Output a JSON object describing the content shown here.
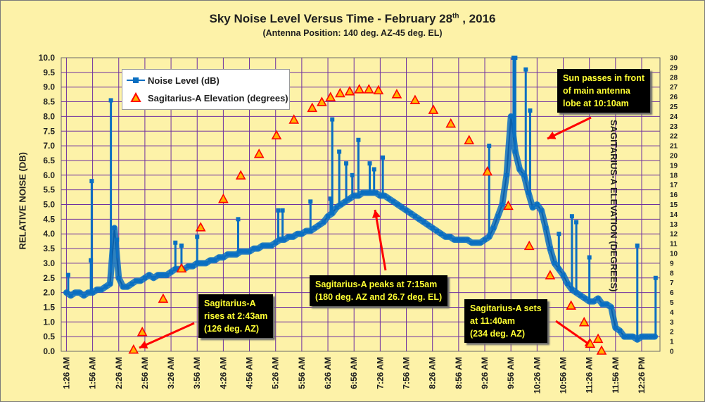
{
  "chart_data": {
    "type": "line",
    "title": "Sky Noise Level  Versus Time - February 28",
    "title_sup": "th",
    "title_suffix": " , 2016",
    "subtitle": "(Antenna Position: 140 deg. AZ-45 deg. EL)",
    "ylabel": "RELATIVE NOISE (DB)",
    "y2label": "SAGITARIUS-A ELEVATION (DEGREES)",
    "ylim": [
      0,
      10
    ],
    "y2lim": [
      0,
      30
    ],
    "yticks": [
      "0.0",
      "0.5",
      "1.0",
      "1.5",
      "2.0",
      "2.5",
      "3.0",
      "3.5",
      "4.0",
      "4.5",
      "5.0",
      "5.5",
      "6.0",
      "6.5",
      "7.0",
      "7.5",
      "8.0",
      "8.5",
      "9.0",
      "9.5",
      "10.0"
    ],
    "y2ticks": [
      "0",
      "1",
      "2",
      "3",
      "4",
      "5",
      "6",
      "7",
      "8",
      "9",
      "10",
      "11",
      "12",
      "13",
      "14",
      "15",
      "16",
      "17",
      "18",
      "19",
      "20",
      "21",
      "22",
      "23",
      "24",
      "25",
      "26",
      "27",
      "28",
      "29",
      "30"
    ],
    "xticks": [
      "1:26 AM",
      "1:56 AM",
      "2:26 AM",
      "2:56 AM",
      "3:26 AM",
      "3:56 AM",
      "4:26 AM",
      "4:56 AM",
      "5:26 AM",
      "5:56 AM",
      "6:26 AM",
      "6:56 AM",
      "7:26 AM",
      "7:56 AM",
      "8:26 AM",
      "8:56 AM",
      "9:26 AM",
      "9:56 AM",
      "10:26 AM",
      "10:56 AM",
      "11:26 AM",
      "11:56 AM",
      "12:26 PM"
    ],
    "grid": true,
    "legend_position": "top-left",
    "colors": {
      "noise": "#0a6fc2",
      "marker": "#ff0000",
      "marker_fill": "#ffb400",
      "grid": "#7030a0",
      "background": "#fdf2a8"
    },
    "series": [
      {
        "name": "Noise Level (dB)",
        "axis": "left",
        "x": [
          "1:26 AM",
          "1:31 AM",
          "1:36 AM",
          "1:41 AM",
          "1:46 AM",
          "1:51 AM",
          "1:56 AM",
          "2:01 AM",
          "2:06 AM",
          "2:11 AM",
          "2:16 AM",
          "2:21 AM",
          "2:26 AM",
          "2:31 AM",
          "2:36 AM",
          "2:41 AM",
          "2:46 AM",
          "2:51 AM",
          "2:56 AM",
          "3:01 AM",
          "3:06 AM",
          "3:11 AM",
          "3:16 AM",
          "3:21 AM",
          "3:26 AM",
          "3:31 AM",
          "3:36 AM",
          "3:41 AM",
          "3:46 AM",
          "3:51 AM",
          "3:56 AM",
          "4:01 AM",
          "4:06 AM",
          "4:11 AM",
          "4:16 AM",
          "4:21 AM",
          "4:26 AM",
          "4:31 AM",
          "4:36 AM",
          "4:41 AM",
          "4:46 AM",
          "4:51 AM",
          "4:56 AM",
          "5:01 AM",
          "5:06 AM",
          "5:11 AM",
          "5:16 AM",
          "5:21 AM",
          "5:26 AM",
          "5:31 AM",
          "5:36 AM",
          "5:41 AM",
          "5:46 AM",
          "5:51 AM",
          "5:56 AM",
          "6:01 AM",
          "6:06 AM",
          "6:11 AM",
          "6:16 AM",
          "6:21 AM",
          "6:26 AM",
          "6:31 AM",
          "6:36 AM",
          "6:41 AM",
          "6:46 AM",
          "6:51 AM",
          "6:56 AM",
          "7:01 AM",
          "7:06 AM",
          "7:11 AM",
          "7:16 AM",
          "7:21 AM",
          "7:26 AM",
          "7:31 AM",
          "7:36 AM",
          "7:41 AM",
          "7:46 AM",
          "7:51 AM",
          "7:56 AM",
          "8:01 AM",
          "8:06 AM",
          "8:11 AM",
          "8:16 AM",
          "8:21 AM",
          "8:26 AM",
          "8:31 AM",
          "8:36 AM",
          "8:41 AM",
          "8:46 AM",
          "8:51 AM",
          "8:56 AM",
          "9:01 AM",
          "9:06 AM",
          "9:11 AM",
          "9:16 AM",
          "9:21 AM",
          "9:26 AM",
          "9:31 AM",
          "9:36 AM",
          "9:41 AM",
          "9:46 AM",
          "9:51 AM",
          "9:56 AM",
          "10:01 AM",
          "10:06 AM",
          "10:11 AM",
          "10:16 AM",
          "10:21 AM",
          "10:26 AM",
          "10:31 AM",
          "10:36 AM",
          "10:41 AM",
          "10:46 AM",
          "10:51 AM",
          "10:56 AM",
          "11:01 AM",
          "11:06 AM",
          "11:11 AM",
          "11:16 AM",
          "11:21 AM",
          "11:26 AM",
          "11:31 AM",
          "11:36 AM",
          "11:41 AM",
          "11:46 AM",
          "11:51 AM",
          "11:56 AM",
          "12:01 PM",
          "12:06 PM",
          "12:11 PM",
          "12:16 PM",
          "12:21 PM",
          "12:26 PM",
          "12:31 PM",
          "12:36 PM",
          "12:41 PM"
        ],
        "values": [
          2.0,
          1.9,
          2.0,
          2.0,
          1.9,
          2.0,
          2.0,
          2.1,
          2.1,
          2.2,
          2.3,
          4.2,
          2.5,
          2.2,
          2.2,
          2.3,
          2.4,
          2.4,
          2.5,
          2.6,
          2.5,
          2.6,
          2.6,
          2.6,
          2.7,
          2.8,
          2.8,
          2.8,
          2.9,
          2.9,
          3.0,
          3.0,
          3.0,
          3.1,
          3.1,
          3.2,
          3.2,
          3.3,
          3.3,
          3.3,
          3.4,
          3.4,
          3.4,
          3.5,
          3.5,
          3.6,
          3.6,
          3.6,
          3.7,
          3.8,
          3.8,
          3.9,
          3.9,
          4.0,
          4.0,
          4.1,
          4.1,
          4.2,
          4.3,
          4.4,
          4.6,
          4.7,
          4.9,
          5.0,
          5.1,
          5.2,
          5.3,
          5.3,
          5.4,
          5.4,
          5.4,
          5.4,
          5.3,
          5.3,
          5.2,
          5.1,
          5.0,
          4.9,
          4.8,
          4.7,
          4.6,
          4.5,
          4.4,
          4.3,
          4.2,
          4.1,
          4.0,
          3.9,
          3.9,
          3.8,
          3.8,
          3.8,
          3.8,
          3.7,
          3.7,
          3.7,
          3.8,
          3.9,
          4.2,
          4.6,
          5.0,
          6.0,
          8.0,
          6.8,
          6.2,
          6.0,
          5.4,
          4.9,
          5.0,
          4.8,
          4.2,
          3.5,
          3.0,
          2.8,
          2.6,
          2.3,
          2.1,
          2.0,
          1.9,
          1.8,
          1.7,
          1.7,
          1.8,
          1.6,
          1.6,
          1.5,
          0.8,
          0.7,
          0.5,
          0.5,
          0.5,
          0.4,
          0.5,
          0.5,
          0.5,
          0.5
        ],
        "spikes": [
          {
            "x": "1:28 AM",
            "value": 2.6
          },
          {
            "x": "1:54 AM",
            "value": 3.1
          },
          {
            "x": "1:55 AM",
            "value": 5.8
          },
          {
            "x": "2:17 AM",
            "value": 8.55
          },
          {
            "x": "2:24 AM",
            "value": 3.8
          },
          {
            "x": "3:31 AM",
            "value": 3.7
          },
          {
            "x": "3:38 AM",
            "value": 3.6
          },
          {
            "x": "3:56 AM",
            "value": 3.9
          },
          {
            "x": "4:43 AM",
            "value": 4.5
          },
          {
            "x": "5:29 AM",
            "value": 4.8
          },
          {
            "x": "5:34 AM",
            "value": 4.8
          },
          {
            "x": "6:06 AM",
            "value": 5.1
          },
          {
            "x": "6:29 AM",
            "value": 5.2
          },
          {
            "x": "6:31 AM",
            "value": 7.9
          },
          {
            "x": "6:39 AM",
            "value": 6.8
          },
          {
            "x": "6:47 AM",
            "value": 6.4
          },
          {
            "x": "6:54 AM",
            "value": 6.0
          },
          {
            "x": "7:01 AM",
            "value": 7.2
          },
          {
            "x": "7:14 AM",
            "value": 6.4
          },
          {
            "x": "7:19 AM",
            "value": 6.2
          },
          {
            "x": "7:29 AM",
            "value": 6.6
          },
          {
            "x": "9:31 AM",
            "value": 7.0
          },
          {
            "x": "9:59 AM",
            "value": 10.0
          },
          {
            "x": "10:01 AM",
            "value": 10.0
          },
          {
            "x": "10:13 AM",
            "value": 9.6
          },
          {
            "x": "10:18 AM",
            "value": 8.2
          },
          {
            "x": "10:51 AM",
            "value": 4.0
          },
          {
            "x": "11:06 AM",
            "value": 4.6
          },
          {
            "x": "11:11 AM",
            "value": 4.4
          },
          {
            "x": "11:26 AM",
            "value": 3.2
          },
          {
            "x": "12:21 PM",
            "value": 3.6
          },
          {
            "x": "12:42 PM",
            "value": 2.5
          }
        ]
      },
      {
        "name": "Sagitarius-A Elevation (degrees)",
        "axis": "right",
        "x": [
          "2:43 AM",
          "2:53 AM",
          "3:17 AM",
          "3:38 AM",
          "4:00 AM",
          "4:26 AM",
          "4:46 AM",
          "5:07 AM",
          "5:27 AM",
          "5:47 AM",
          "6:08 AM",
          "6:19 AM",
          "6:29 AM",
          "6:40 AM",
          "6:51 AM",
          "7:02 AM",
          "7:13 AM",
          "7:24 AM",
          "7:45 AM",
          "8:06 AM",
          "8:27 AM",
          "8:47 AM",
          "9:08 AM",
          "9:29 AM",
          "9:53 AM",
          "10:17 AM",
          "10:41 AM",
          "11:05 AM",
          "11:20 AM",
          "11:27 AM",
          "11:36 AM",
          "11:40 AM"
        ],
        "values": [
          0.1,
          1.9,
          5.3,
          8.4,
          12.6,
          15.5,
          17.9,
          20.1,
          22.0,
          23.6,
          24.8,
          25.4,
          25.9,
          26.3,
          26.5,
          26.7,
          26.7,
          26.6,
          26.2,
          25.6,
          24.6,
          23.2,
          21.5,
          18.3,
          14.8,
          10.7,
          7.7,
          4.6,
          2.9,
          0.7,
          1.2,
          0.0
        ]
      }
    ],
    "annotations": [
      {
        "lines": [
          "Sagitarius-A",
          "rises at 2:43am",
          "(126 deg. AZ)"
        ]
      },
      {
        "lines": [
          "Sagitarius-A peaks at 7:15am",
          "(180 deg. AZ and 26.7  deg. EL)"
        ]
      },
      {
        "lines": [
          "Sun passes in front",
          "of main antenna",
          "lobe at 10:10am"
        ]
      },
      {
        "lines": [
          "Sagitarius-A sets",
          "at 11:40am",
          "(234 deg. AZ)"
        ]
      }
    ]
  }
}
